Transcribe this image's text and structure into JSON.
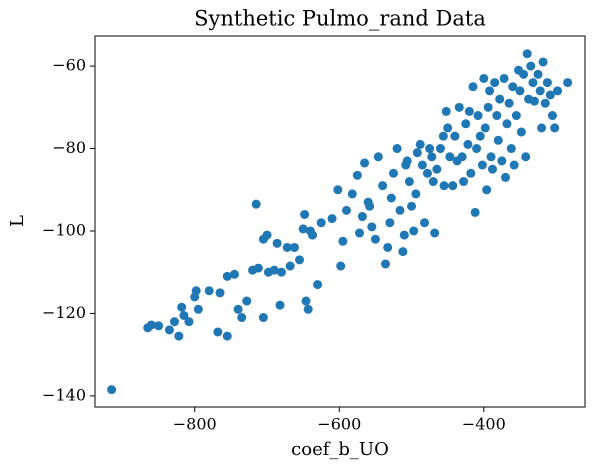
{
  "chart_data": {
    "type": "scatter",
    "title": "Synthetic Pulmo_rand Data",
    "x_label": "coef_b_UO",
    "y_label": "L",
    "color": "#1f77b4",
    "x": [
      -915,
      -865,
      -860,
      -850,
      -835,
      -828,
      -822,
      -818,
      -815,
      -808,
      -800,
      -798,
      -795,
      -780,
      -768,
      -765,
      -755,
      -755,
      -745,
      -740,
      -735,
      -728,
      -720,
      -715,
      -712,
      -705,
      -705,
      -700,
      -698,
      -690,
      -686,
      -682,
      -680,
      -672,
      -668,
      -662,
      -655,
      -650,
      -648,
      -646,
      -643,
      -640,
      -637,
      -630,
      -625,
      -610,
      -602,
      -598,
      -595,
      -590,
      -582,
      -575,
      -572,
      -568,
      -565,
      -560,
      -558,
      -555,
      -550,
      -546,
      -540,
      -536,
      -533,
      -530,
      -528,
      -525,
      -520,
      -516,
      -512,
      -510,
      -508,
      -506,
      -503,
      -500,
      -497,
      -494,
      -492,
      -488,
      -485,
      -482,
      -478,
      -475,
      -472,
      -470,
      -468,
      -465,
      -460,
      -456,
      -455,
      -452,
      -450,
      -447,
      -443,
      -440,
      -437,
      -434,
      -430,
      -428,
      -425,
      -422,
      -420,
      -418,
      -415,
      -412,
      -410,
      -408,
      -405,
      -402,
      -400,
      -398,
      -396,
      -394,
      -392,
      -390,
      -388,
      -385,
      -382,
      -380,
      -378,
      -375,
      -372,
      -370,
      -368,
      -365,
      -362,
      -360,
      -358,
      -355,
      -352,
      -350,
      -348,
      -345,
      -342,
      -340,
      -338,
      -335,
      -332,
      -330,
      -325,
      -322,
      -320,
      -318,
      -315,
      -312,
      -308,
      -305,
      -302,
      -298,
      -284
    ],
    "y": [
      -138.5,
      -123.5,
      -122.8,
      -123,
      -124,
      -122,
      -125.5,
      -118.5,
      -120.5,
      -122,
      -116,
      -114.5,
      -119,
      -114.5,
      -124.5,
      -115,
      -125.5,
      -111,
      -110.5,
      -119,
      -121,
      -117,
      -109.5,
      -93.5,
      -109,
      -121,
      -102,
      -101,
      -110,
      -109.5,
      -103,
      -118,
      -110,
      -104,
      -108.5,
      -104,
      -107,
      -99.5,
      -96,
      -117,
      -119,
      -100,
      -101,
      -113,
      -98,
      -97,
      -90,
      -108.5,
      -102.5,
      -95,
      -91,
      -86.5,
      -100.5,
      -96.5,
      -83.5,
      -93,
      -94,
      -99,
      -102,
      -82,
      -89,
      -108,
      -104,
      -98,
      -92,
      -86,
      -80,
      -95,
      -105,
      -101,
      -84,
      -83,
      -88,
      -94,
      -100,
      -91,
      -81,
      -79,
      -84,
      -98,
      -86,
      -80,
      -82,
      -88,
      -100.5,
      -85,
      -80,
      -77,
      -89,
      -71,
      -75,
      -82,
      -89,
      -77,
      -83,
      -70,
      -82,
      -88,
      -74,
      -79,
      -71,
      -86,
      -65,
      -95.5,
      -80,
      -72,
      -77,
      -84,
      -63,
      -75,
      -90,
      -70,
      -66,
      -82,
      -85,
      -64,
      -72,
      -78,
      -68,
      -83,
      -63,
      -87,
      -74,
      -69,
      -80,
      -65,
      -84,
      -72,
      -61,
      -66,
      -76,
      -62,
      -82,
      -57,
      -68,
      -60,
      -64,
      -68.5,
      -62,
      -66,
      -75,
      -59,
      -69,
      -64,
      -67,
      -72,
      -75,
      -66,
      -64
    ],
    "xlim": [
      -938,
      -260
    ],
    "ylim": [
      -142.7,
      -52.7
    ],
    "xticks": [
      {
        "value": -800,
        "label": "−800"
      },
      {
        "value": -600,
        "label": "−600"
      },
      {
        "value": -400,
        "label": "−400"
      }
    ],
    "yticks": [
      {
        "value": -60,
        "label": "−60"
      },
      {
        "value": -80,
        "label": "−80"
      },
      {
        "value": -100,
        "label": "−100"
      },
      {
        "value": -120,
        "label": "−120"
      },
      {
        "value": -140,
        "label": "−140"
      }
    ]
  }
}
